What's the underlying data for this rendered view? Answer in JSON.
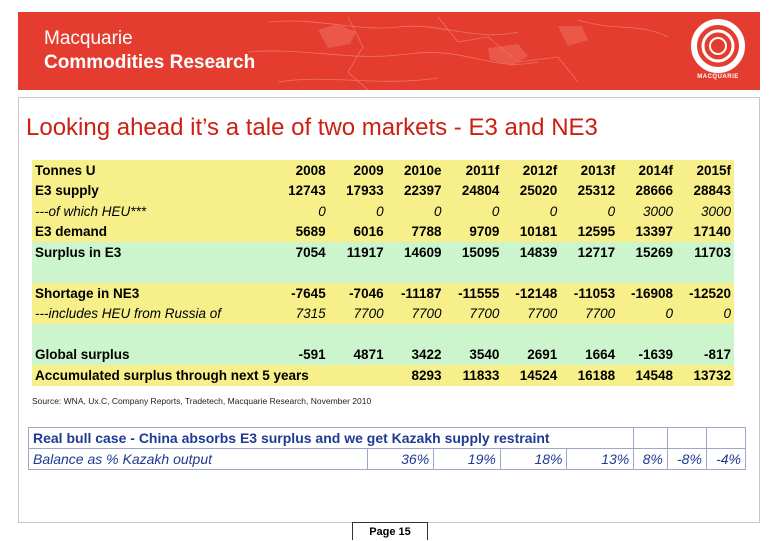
{
  "header": {
    "line1": "Macquarie",
    "line2": "Commodities Research",
    "logo_text": "MACQUARIE",
    "bg_color": "#e43d2f"
  },
  "title": "Looking ahead it’s a tale of two markets - E3 and NE3",
  "table": {
    "headers": [
      "Tonnes U",
      "2008",
      "2009",
      "2010e",
      "2011f",
      "2012f",
      "2013f",
      "2014f",
      "2015f"
    ],
    "rows": [
      {
        "label": "E3 supply",
        "values": [
          "12743",
          "17933",
          "22397",
          "24804",
          "25020",
          "25312",
          "28666",
          "28843"
        ]
      },
      {
        "label": "---of which HEU***",
        "values": [
          "0",
          "0",
          "0",
          "0",
          "0",
          "0",
          "3000",
          "3000"
        ]
      },
      {
        "label": "E3 demand",
        "values": [
          "5689",
          "6016",
          "7788",
          "9709",
          "10181",
          "12595",
          "13397",
          "17140"
        ]
      },
      {
        "label": "Surplus in E3",
        "values": [
          "7054",
          "11917",
          "14609",
          "15095",
          "14839",
          "12717",
          "15269",
          "11703"
        ]
      },
      {
        "label": "Shortage in NE3",
        "values": [
          "-7645",
          "-7046",
          "-11187",
          "-11555",
          "-12148",
          "-11053",
          "-16908",
          "-12520"
        ]
      },
      {
        "label": "---includes HEU from Russia of",
        "values": [
          "7315",
          "7700",
          "7700",
          "7700",
          "7700",
          "7700",
          "0",
          "0"
        ]
      },
      {
        "label": "Global surplus",
        "values": [
          "-591",
          "4871",
          "3422",
          "3540",
          "2691",
          "1664",
          "-1639",
          "-817"
        ]
      },
      {
        "label": "Accumulated surplus through next 5 years",
        "values": [
          "8293",
          "11833",
          "14524",
          "16188",
          "14548",
          "13732"
        ]
      }
    ]
  },
  "source": "Source: WNA, Ux.C, Company Reports, Tradetech, Macquarie Research, November 2010",
  "bull_case": {
    "title": "Real bull case - China absorbs E3 surplus and we get Kazakh supply restraint",
    "label": "Balance as % Kazakh output",
    "values": [
      "36%",
      "19%",
      "18%",
      "13%",
      "8%",
      "-8%",
      "-4%"
    ]
  },
  "footer": {
    "page": "Page 15"
  },
  "colors": {
    "title": "#cc1f12",
    "yellow_row": "#f7f08a",
    "green_row": "#cdf5cd",
    "bull_text": "#1f3a93"
  }
}
